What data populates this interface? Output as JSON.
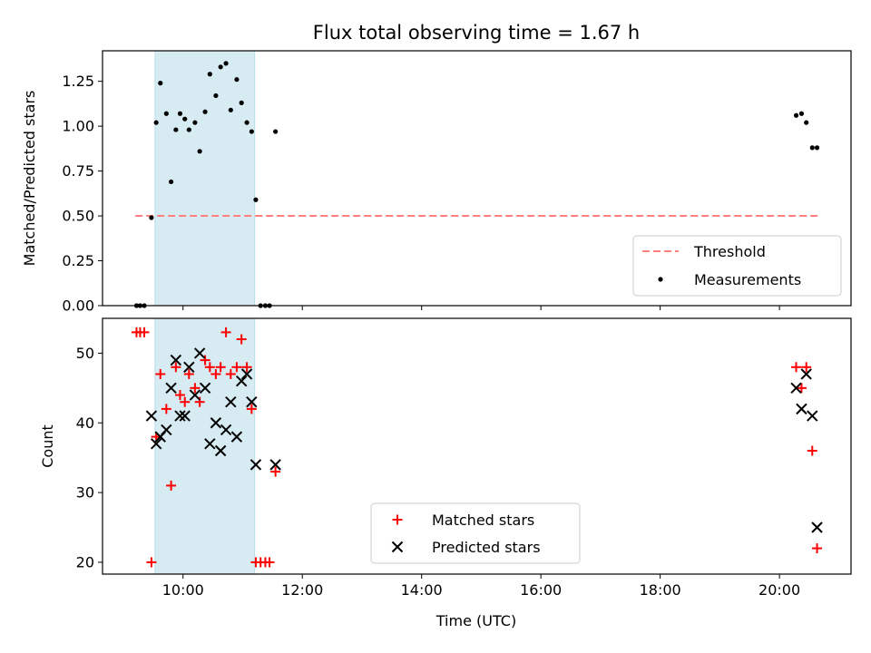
{
  "chart_data": {
    "title": "Flux total observing time = 1.67 h",
    "xlabel": "Time (UTC)",
    "x_unit": "hours (UTC)",
    "x_ticks": [
      {
        "value": 10,
        "label": "10:00"
      },
      {
        "value": 12,
        "label": "12:00"
      },
      {
        "value": 14,
        "label": "14:00"
      },
      {
        "value": 16,
        "label": "16:00"
      },
      {
        "value": 18,
        "label": "18:00"
      },
      {
        "value": 20,
        "label": "20:00"
      }
    ],
    "xlim": [
      8.65,
      21.2
    ],
    "shaded_span": {
      "x_start": 9.53,
      "x_end": 11.2,
      "color": "#add8e6"
    },
    "panels": [
      {
        "type": "scatter",
        "ylabel": "Matched/Predicted stars",
        "ylim": [
          0,
          1.42
        ],
        "y_ticks": [
          {
            "value": 0.0,
            "label": "0.00"
          },
          {
            "value": 0.25,
            "label": "0.25"
          },
          {
            "value": 0.5,
            "label": "0.50"
          },
          {
            "value": 0.75,
            "label": "0.75"
          },
          {
            "value": 1.0,
            "label": "1.00"
          },
          {
            "value": 1.25,
            "label": "1.25"
          }
        ],
        "threshold": {
          "name": "Threshold",
          "value": 0.5,
          "x_start": 9.2,
          "x_end": 20.65,
          "color": "#ff7f7f"
        },
        "series": [
          {
            "name": "Measurements",
            "color": "#000000",
            "marker": "dot",
            "points": [
              [
                9.22,
                0.0
              ],
              [
                9.28,
                0.0
              ],
              [
                9.35,
                0.0
              ],
              [
                9.47,
                0.49
              ],
              [
                9.55,
                1.02
              ],
              [
                9.62,
                1.24
              ],
              [
                9.72,
                1.07
              ],
              [
                9.8,
                0.69
              ],
              [
                9.88,
                0.98
              ],
              [
                9.95,
                1.07
              ],
              [
                10.03,
                1.04
              ],
              [
                10.1,
                0.98
              ],
              [
                10.2,
                1.02
              ],
              [
                10.28,
                0.86
              ],
              [
                10.37,
                1.08
              ],
              [
                10.45,
                1.29
              ],
              [
                10.55,
                1.17
              ],
              [
                10.63,
                1.33
              ],
              [
                10.72,
                1.35
              ],
              [
                10.8,
                1.09
              ],
              [
                10.9,
                1.26
              ],
              [
                10.98,
                1.13
              ],
              [
                11.07,
                1.02
              ],
              [
                11.15,
                0.97
              ],
              [
                11.22,
                0.59
              ],
              [
                11.3,
                0.0
              ],
              [
                11.38,
                0.0
              ],
              [
                11.45,
                0.0
              ],
              [
                11.55,
                0.97
              ],
              [
                20.28,
                1.06
              ],
              [
                20.37,
                1.07
              ],
              [
                20.45,
                1.02
              ],
              [
                20.55,
                0.88
              ],
              [
                20.63,
                0.88
              ]
            ]
          }
        ],
        "legend": {
          "position": "bottom-right",
          "entries": [
            "Threshold",
            "Measurements"
          ]
        }
      },
      {
        "type": "scatter",
        "ylabel": "Count",
        "ylim": [
          18.3,
          55
        ],
        "y_ticks": [
          {
            "value": 20,
            "label": "20"
          },
          {
            "value": 30,
            "label": "30"
          },
          {
            "value": 40,
            "label": "40"
          },
          {
            "value": 50,
            "label": "50"
          }
        ],
        "series": [
          {
            "name": "Matched stars",
            "color": "#ff0000",
            "marker": "plus",
            "points": [
              [
                9.22,
                53
              ],
              [
                9.28,
                53
              ],
              [
                9.35,
                53
              ],
              [
                9.47,
                20
              ],
              [
                9.55,
                38
              ],
              [
                9.62,
                47
              ],
              [
                9.72,
                42
              ],
              [
                9.8,
                31
              ],
              [
                9.88,
                48
              ],
              [
                9.95,
                44
              ],
              [
                10.03,
                43
              ],
              [
                10.1,
                47
              ],
              [
                10.2,
                45
              ],
              [
                10.28,
                43
              ],
              [
                10.37,
                49
              ],
              [
                10.45,
                48
              ],
              [
                10.55,
                47
              ],
              [
                10.63,
                48
              ],
              [
                10.72,
                53
              ],
              [
                10.8,
                47
              ],
              [
                10.9,
                48
              ],
              [
                10.98,
                52
              ],
              [
                11.07,
                48
              ],
              [
                11.15,
                42
              ],
              [
                11.22,
                20
              ],
              [
                11.3,
                20
              ],
              [
                11.38,
                20
              ],
              [
                11.45,
                20
              ],
              [
                11.55,
                33
              ],
              [
                20.28,
                48
              ],
              [
                20.37,
                45
              ],
              [
                20.45,
                48
              ],
              [
                20.55,
                36
              ],
              [
                20.63,
                22
              ]
            ]
          },
          {
            "name": "Predicted stars",
            "color": "#000000",
            "marker": "x",
            "points": [
              [
                9.47,
                41
              ],
              [
                9.55,
                37
              ],
              [
                9.62,
                38
              ],
              [
                9.72,
                39
              ],
              [
                9.8,
                45
              ],
              [
                9.88,
                49
              ],
              [
                9.95,
                41
              ],
              [
                10.03,
                41
              ],
              [
                10.1,
                48
              ],
              [
                10.2,
                44
              ],
              [
                10.28,
                50
              ],
              [
                10.37,
                45
              ],
              [
                10.45,
                37
              ],
              [
                10.55,
                40
              ],
              [
                10.63,
                36
              ],
              [
                10.72,
                39
              ],
              [
                10.8,
                43
              ],
              [
                10.9,
                38
              ],
              [
                10.98,
                46
              ],
              [
                11.07,
                47
              ],
              [
                11.15,
                43
              ],
              [
                11.22,
                34
              ],
              [
                11.55,
                34
              ],
              [
                20.28,
                45
              ],
              [
                20.37,
                42
              ],
              [
                20.45,
                47
              ],
              [
                20.55,
                41
              ],
              [
                20.63,
                25
              ]
            ]
          }
        ],
        "legend": {
          "position": "bottom-center",
          "entries": [
            "Matched stars",
            "Predicted stars"
          ]
        }
      }
    ]
  }
}
